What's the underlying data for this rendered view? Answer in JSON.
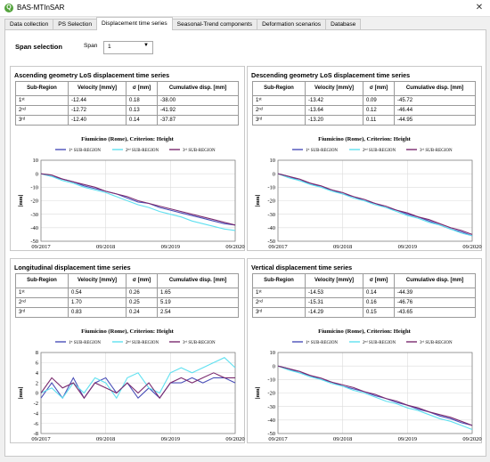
{
  "app": {
    "title": "BAS-MTInSAR",
    "icon": "qgis-icon",
    "close": "✕"
  },
  "tabs": [
    {
      "label": "Data collection",
      "active": false
    },
    {
      "label": "PS Selection",
      "active": false
    },
    {
      "label": "Displacement time series",
      "active": true
    },
    {
      "label": "Seasonal-Trend components",
      "active": false
    },
    {
      "label": "Deformation scenarios",
      "active": false
    },
    {
      "label": "Database",
      "active": false
    }
  ],
  "span": {
    "title": "Span selection",
    "label": "Span",
    "value": "1"
  },
  "colors": {
    "sub1": "#4a4fb8",
    "sub2": "#5fe0f0",
    "sub3": "#7a2a6e",
    "grid": "#dcdcdc"
  },
  "panels": [
    {
      "title": "Ascending geometry LoS displacement time series",
      "headers": [
        "Sub-Region",
        "Velocity [mm/y]",
        "σ [mm]",
        "Cumulative disp. [mm]"
      ],
      "rows": [
        [
          "1ˢᵗ",
          "-12.44",
          "0.18",
          "-38.00"
        ],
        [
          "2ⁿᵈ",
          "-12.72",
          "0.13",
          "-41.92"
        ],
        [
          "3ʳᵈ",
          "-12.40",
          "0.14",
          "-37.87"
        ]
      ]
    },
    {
      "title": "Descending geometry LoS displacement time series",
      "headers": [
        "Sub-Region",
        "Velocity [mm/y]",
        "σ [mm]",
        "Cumulative disp. [mm]"
      ],
      "rows": [
        [
          "1ˢᵗ",
          "-13.42",
          "0.09",
          "-45.72"
        ],
        [
          "2ⁿᵈ",
          "-13.64",
          "0.12",
          "-46.44"
        ],
        [
          "3ʳᵈ",
          "-13.20",
          "0.11",
          "-44.95"
        ]
      ]
    },
    {
      "title": "Longitudinal displacement time series",
      "headers": [
        "Sub-Region",
        "Velocity [mm/y]",
        "σ [mm]",
        "Cumulative disp. [mm]"
      ],
      "rows": [
        [
          "1ˢᵗ",
          "0.54",
          "0.26",
          "1.65"
        ],
        [
          "2ⁿᵈ",
          "1.70",
          "0.25",
          "5.19"
        ],
        [
          "3ʳᵈ",
          "0.83",
          "0.24",
          "2.54"
        ]
      ]
    },
    {
      "title": "Vertical displacement time series",
      "headers": [
        "Sub-Region",
        "Velocity [mm/y]",
        "σ [mm]",
        "Cumulative disp. [mm]"
      ],
      "rows": [
        [
          "1ˢᵗ",
          "-14.53",
          "0.14",
          "-44.39"
        ],
        [
          "2ⁿᵈ",
          "-15.31",
          "0.16",
          "-46.76"
        ],
        [
          "3ʳᵈ",
          "-14.29",
          "0.15",
          "-43.65"
        ]
      ]
    }
  ],
  "chart_data": [
    {
      "type": "line",
      "title": "Fiumicino (Rome), Criterion: Height",
      "ylabel": "[mm]",
      "x_ticks": [
        "09/2017",
        "09/2018",
        "09/2019",
        "09/2020"
      ],
      "y_ticks": [
        10,
        0,
        -10,
        -20,
        -30,
        -40,
        -50
      ],
      "ylim": [
        -50,
        10
      ],
      "xlim": [
        "2017-09",
        "2020-09"
      ],
      "grid": true,
      "legend": "top",
      "series": [
        {
          "name": "1ˢᵗ SUB-REGION",
          "x": [
            "2017-09",
            "2017-11",
            "2018-01",
            "2018-03",
            "2018-05",
            "2018-07",
            "2018-09",
            "2018-11",
            "2019-01",
            "2019-03",
            "2019-05",
            "2019-07",
            "2019-09",
            "2019-11",
            "2020-01",
            "2020-03",
            "2020-05",
            "2020-07",
            "2020-09"
          ],
          "values": [
            0,
            -2,
            -4,
            -6,
            -9,
            -11,
            -13,
            -15,
            -18,
            -21,
            -22,
            -25,
            -27,
            -29,
            -31,
            -33,
            -35,
            -37,
            -38
          ]
        },
        {
          "name": "2ⁿᵈ SUB-REGION",
          "x": [
            "2017-09",
            "2017-11",
            "2018-01",
            "2018-03",
            "2018-05",
            "2018-07",
            "2018-09",
            "2018-11",
            "2019-01",
            "2019-03",
            "2019-05",
            "2019-07",
            "2019-09",
            "2019-11",
            "2020-01",
            "2020-03",
            "2020-05",
            "2020-07",
            "2020-09"
          ],
          "values": [
            0,
            -2,
            -5,
            -7,
            -10,
            -12,
            -14,
            -17,
            -20,
            -23,
            -25,
            -28,
            -30,
            -32,
            -35,
            -37,
            -39,
            -41,
            -42
          ]
        },
        {
          "name": "3ʳᵈ SUB-REGION",
          "x": [
            "2017-09",
            "2017-11",
            "2018-01",
            "2018-03",
            "2018-05",
            "2018-07",
            "2018-09",
            "2018-11",
            "2019-01",
            "2019-03",
            "2019-05",
            "2019-07",
            "2019-09",
            "2019-11",
            "2020-01",
            "2020-03",
            "2020-05",
            "2020-07",
            "2020-09"
          ],
          "values": [
            0,
            -1,
            -4,
            -6,
            -8,
            -10,
            -13,
            -15,
            -17,
            -20,
            -22,
            -24,
            -26,
            -28,
            -30,
            -32,
            -34,
            -36,
            -38
          ]
        }
      ]
    },
    {
      "type": "line",
      "title": "Fiumicino (Rome), Criterion: Height",
      "ylabel": "[mm]",
      "x_ticks": [
        "09/2017",
        "09/2018",
        "09/2019",
        "09/2020"
      ],
      "y_ticks": [
        10,
        0,
        -10,
        -20,
        -30,
        -40,
        -50
      ],
      "ylim": [
        -50,
        10
      ],
      "xlim": [
        "2017-09",
        "2020-09"
      ],
      "grid": true,
      "legend": "top",
      "series": [
        {
          "name": "1ˢᵗ SUB-REGION",
          "x": [
            "2017-09",
            "2017-11",
            "2018-01",
            "2018-03",
            "2018-05",
            "2018-07",
            "2018-09",
            "2018-11",
            "2019-01",
            "2019-03",
            "2019-05",
            "2019-07",
            "2019-09",
            "2019-11",
            "2020-01",
            "2020-03",
            "2020-05",
            "2020-07",
            "2020-09"
          ],
          "values": [
            0,
            -2,
            -5,
            -7,
            -10,
            -12,
            -15,
            -17,
            -20,
            -22,
            -25,
            -27,
            -30,
            -32,
            -35,
            -38,
            -41,
            -43,
            -46
          ]
        },
        {
          "name": "2ⁿᵈ SUB-REGION",
          "x": [
            "2017-09",
            "2017-11",
            "2018-01",
            "2018-03",
            "2018-05",
            "2018-07",
            "2018-09",
            "2018-11",
            "2019-01",
            "2019-03",
            "2019-05",
            "2019-07",
            "2019-09",
            "2019-11",
            "2020-01",
            "2020-03",
            "2020-05",
            "2020-07",
            "2020-09"
          ],
          "values": [
            0,
            -3,
            -5,
            -8,
            -10,
            -13,
            -15,
            -18,
            -20,
            -23,
            -25,
            -28,
            -31,
            -33,
            -36,
            -38,
            -41,
            -44,
            -46
          ]
        },
        {
          "name": "3ʳᵈ SUB-REGION",
          "x": [
            "2017-09",
            "2017-11",
            "2018-01",
            "2018-03",
            "2018-05",
            "2018-07",
            "2018-09",
            "2018-11",
            "2019-01",
            "2019-03",
            "2019-05",
            "2019-07",
            "2019-09",
            "2019-11",
            "2020-01",
            "2020-03",
            "2020-05",
            "2020-07",
            "2020-09"
          ],
          "values": [
            0,
            -2,
            -4,
            -7,
            -9,
            -12,
            -14,
            -17,
            -19,
            -22,
            -24,
            -27,
            -29,
            -32,
            -34,
            -37,
            -40,
            -42,
            -45
          ]
        }
      ]
    },
    {
      "type": "line",
      "title": "Fiumicino (Rome), Criterion: Height",
      "ylabel": "[mm]",
      "x_ticks": [
        "09/2017",
        "09/2018",
        "09/2019",
        "09/2020"
      ],
      "y_ticks": [
        8,
        6,
        4,
        2,
        0,
        -2,
        -4,
        -6,
        -8
      ],
      "ylim": [
        -8,
        8
      ],
      "xlim": [
        "2017-09",
        "2020-09"
      ],
      "grid": true,
      "legend": "top",
      "series": [
        {
          "name": "1ˢᵗ SUB-REGION",
          "x": [
            "2017-09",
            "2017-11",
            "2018-01",
            "2018-03",
            "2018-05",
            "2018-07",
            "2018-09",
            "2018-11",
            "2019-01",
            "2019-03",
            "2019-05",
            "2019-07",
            "2019-09",
            "2019-11",
            "2020-01",
            "2020-03",
            "2020-05",
            "2020-07",
            "2020-09"
          ],
          "values": [
            -1,
            2,
            -1,
            3,
            -1,
            2,
            3,
            0,
            2,
            -1,
            1,
            -1,
            2,
            2,
            3,
            2,
            3,
            3,
            2
          ]
        },
        {
          "name": "2ⁿᵈ SUB-REGION",
          "x": [
            "2017-09",
            "2017-11",
            "2018-01",
            "2018-03",
            "2018-05",
            "2018-07",
            "2018-09",
            "2018-11",
            "2019-01",
            "2019-03",
            "2019-05",
            "2019-07",
            "2019-09",
            "2019-11",
            "2020-01",
            "2020-03",
            "2020-05",
            "2020-07",
            "2020-09"
          ],
          "values": [
            0,
            1,
            -1,
            2,
            0,
            3,
            2,
            -1,
            3,
            4,
            1,
            0,
            4,
            5,
            4,
            5,
            6,
            7,
            5
          ]
        },
        {
          "name": "3ʳᵈ SUB-REGION",
          "x": [
            "2017-09",
            "2017-11",
            "2018-01",
            "2018-03",
            "2018-05",
            "2018-07",
            "2018-09",
            "2018-11",
            "2019-01",
            "2019-03",
            "2019-05",
            "2019-07",
            "2019-09",
            "2019-11",
            "2020-01",
            "2020-03",
            "2020-05",
            "2020-07",
            "2020-09"
          ],
          "values": [
            0,
            3,
            1,
            2,
            -1,
            2,
            1,
            0,
            2,
            0,
            2,
            -1,
            2,
            3,
            2,
            3,
            4,
            3,
            3
          ]
        }
      ]
    },
    {
      "type": "line",
      "title": "Fiumicino (Rome), Criterion: Height",
      "ylabel": "[mm]",
      "x_ticks": [
        "09/2017",
        "09/2018",
        "09/2019",
        "09/2020"
      ],
      "y_ticks": [
        10,
        0,
        -10,
        -20,
        -30,
        -40,
        -50
      ],
      "ylim": [
        -50,
        10
      ],
      "xlim": [
        "2017-09",
        "2020-09"
      ],
      "grid": true,
      "legend": "top",
      "series": [
        {
          "name": "1ˢᵗ SUB-REGION",
          "x": [
            "2017-09",
            "2017-11",
            "2018-01",
            "2018-03",
            "2018-05",
            "2018-07",
            "2018-09",
            "2018-11",
            "2019-01",
            "2019-03",
            "2019-05",
            "2019-07",
            "2019-09",
            "2019-11",
            "2020-01",
            "2020-03",
            "2020-05",
            "2020-07",
            "2020-09"
          ],
          "values": [
            0,
            -2,
            -5,
            -7,
            -10,
            -12,
            -15,
            -17,
            -19,
            -22,
            -24,
            -27,
            -29,
            -32,
            -34,
            -37,
            -39,
            -42,
            -44
          ]
        },
        {
          "name": "2ⁿᵈ SUB-REGION",
          "x": [
            "2017-09",
            "2017-11",
            "2018-01",
            "2018-03",
            "2018-05",
            "2018-07",
            "2018-09",
            "2018-11",
            "2019-01",
            "2019-03",
            "2019-05",
            "2019-07",
            "2019-09",
            "2019-11",
            "2020-01",
            "2020-03",
            "2020-05",
            "2020-07",
            "2020-09"
          ],
          "values": [
            0,
            -3,
            -5,
            -8,
            -10,
            -13,
            -15,
            -18,
            -20,
            -23,
            -26,
            -28,
            -31,
            -33,
            -36,
            -39,
            -41,
            -44,
            -47
          ]
        },
        {
          "name": "3ʳᵈ SUB-REGION",
          "x": [
            "2017-09",
            "2017-11",
            "2018-01",
            "2018-03",
            "2018-05",
            "2018-07",
            "2018-09",
            "2018-11",
            "2019-01",
            "2019-03",
            "2019-05",
            "2019-07",
            "2019-09",
            "2019-11",
            "2020-01",
            "2020-03",
            "2020-05",
            "2020-07",
            "2020-09"
          ],
          "values": [
            0,
            -2,
            -4,
            -7,
            -9,
            -12,
            -14,
            -16,
            -19,
            -21,
            -24,
            -26,
            -29,
            -31,
            -34,
            -36,
            -38,
            -41,
            -44
          ]
        }
      ]
    }
  ]
}
